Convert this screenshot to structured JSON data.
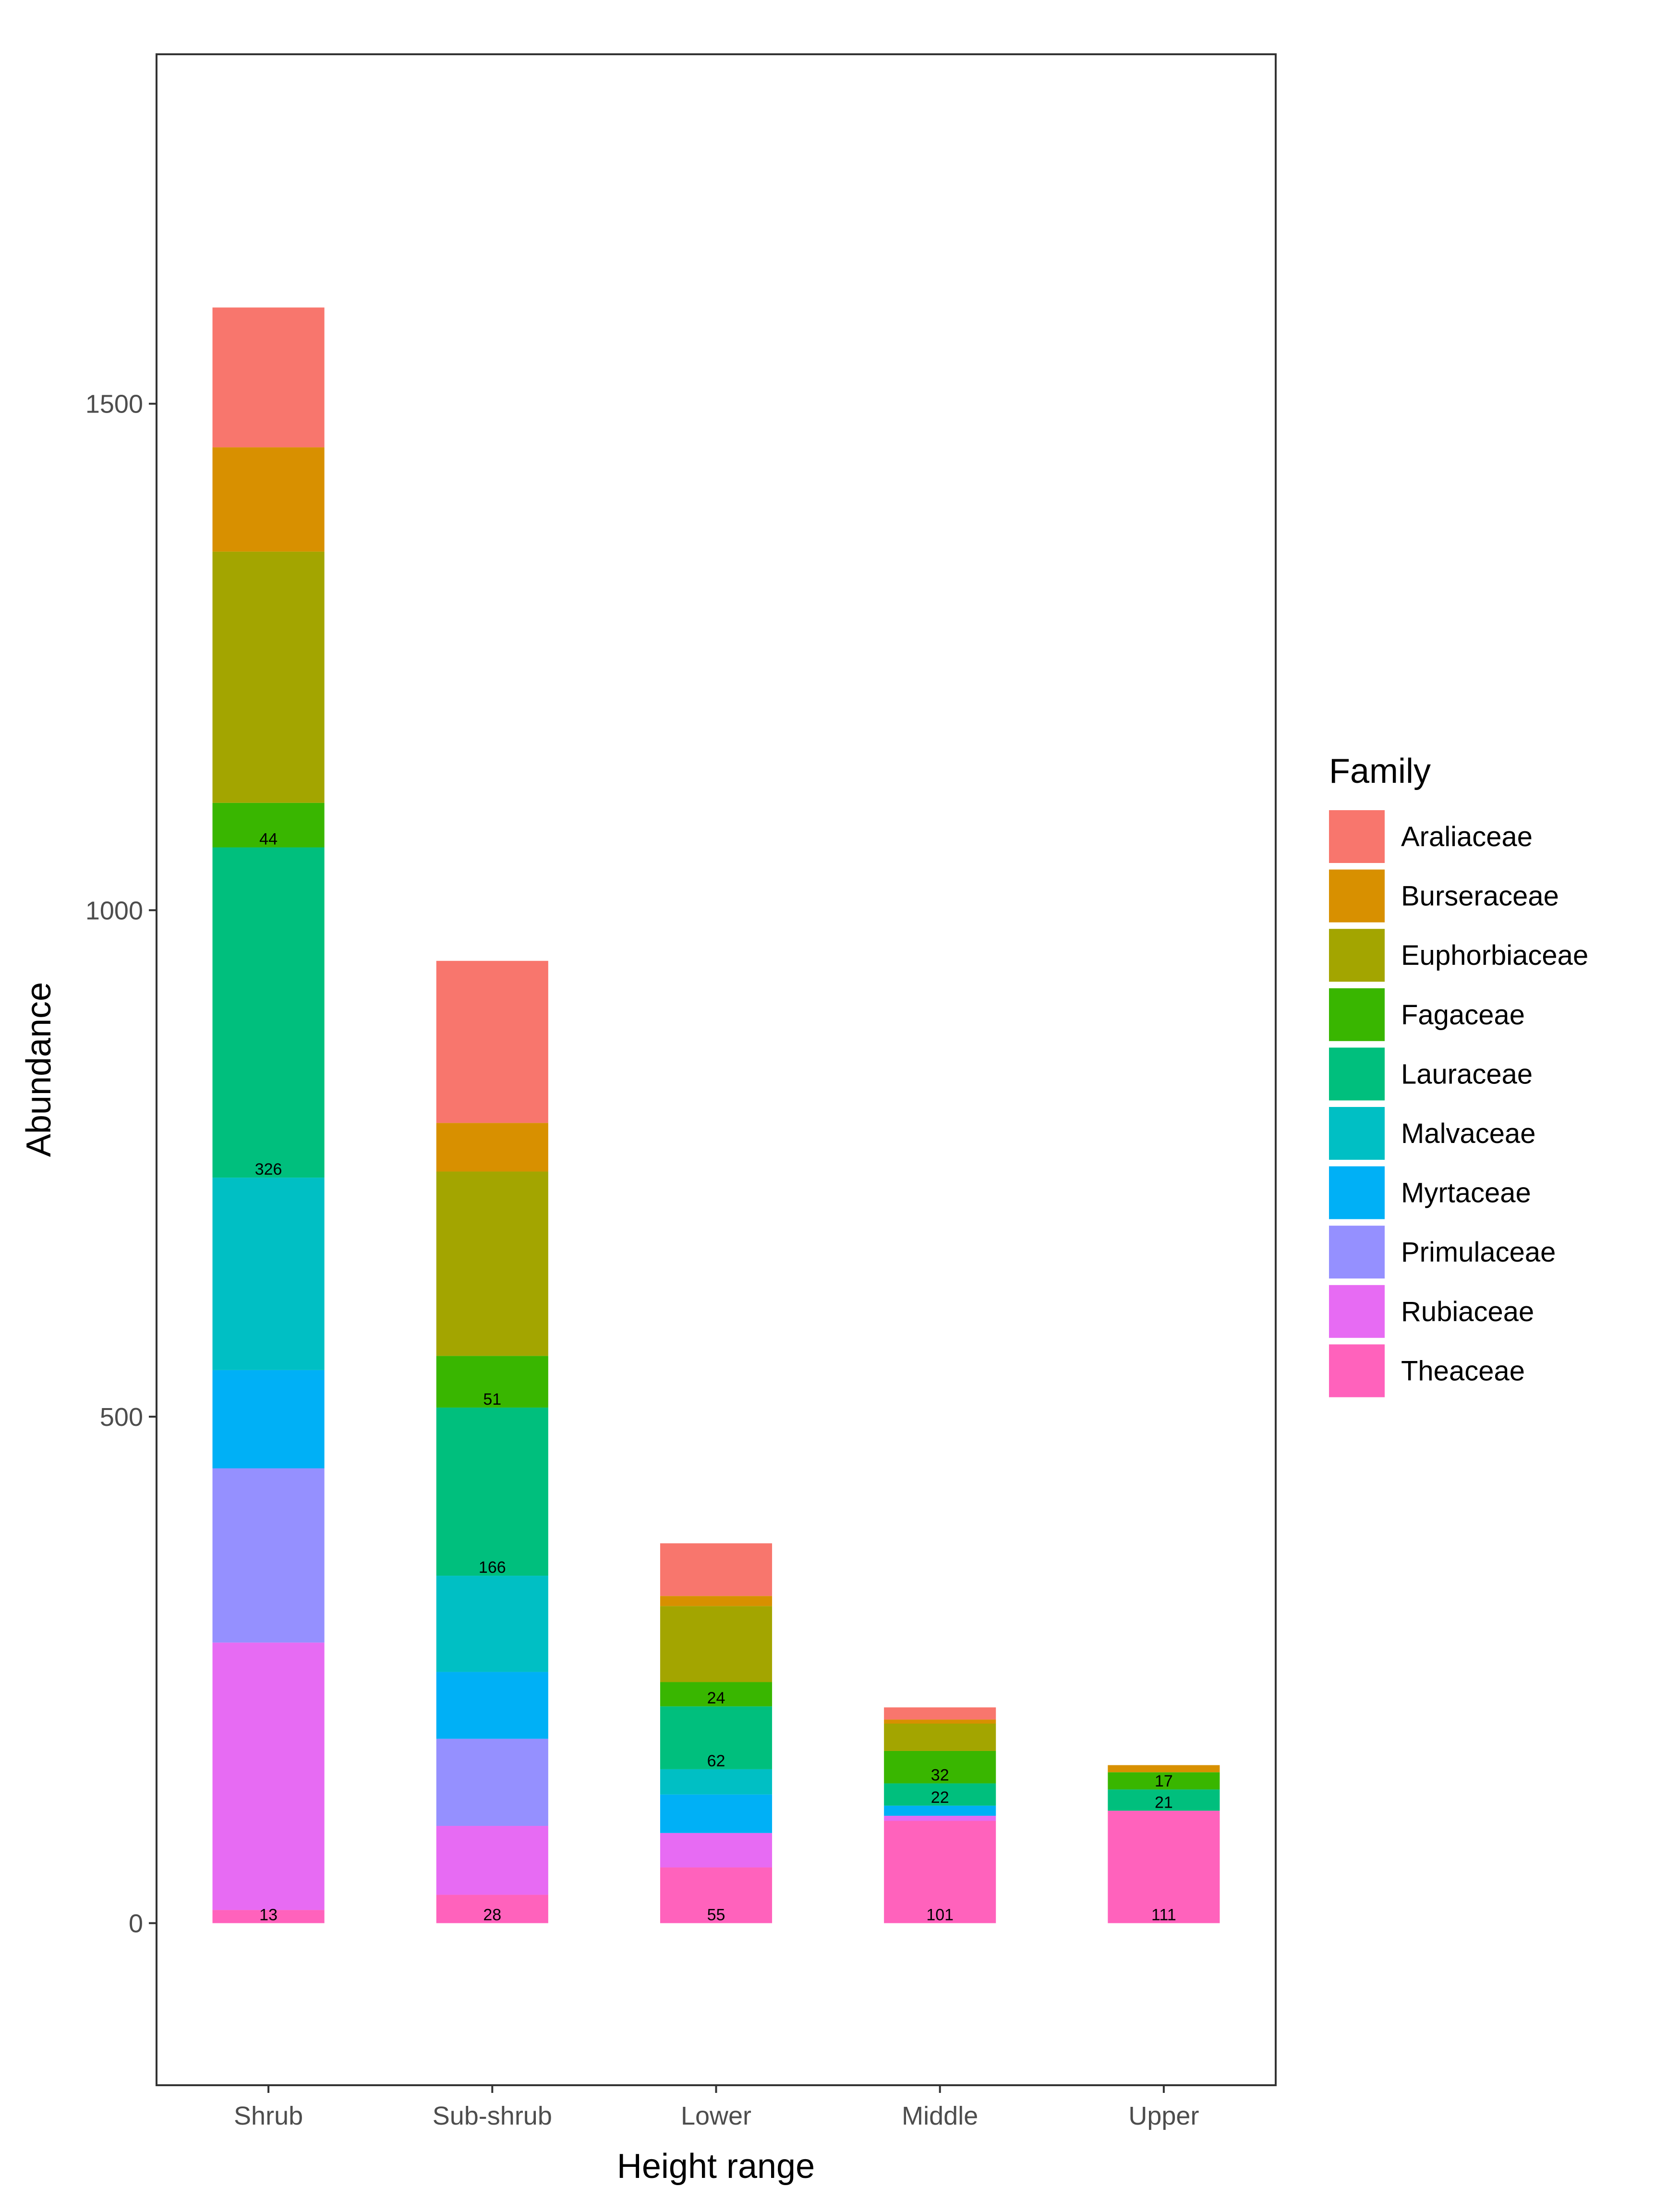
{
  "chart_data": {
    "type": "bar",
    "stacked": true,
    "xlabel": "Height range",
    "ylabel": "Abundance",
    "ylim": [
      -160,
      1845
    ],
    "yticks": [
      0,
      500,
      1000,
      1500
    ],
    "categories": [
      "Shrub",
      "Sub-shrub",
      "Lower",
      "Middle",
      "Upper"
    ],
    "legend": {
      "title": "Family",
      "position": "right"
    },
    "series": [
      {
        "name": "Araliaceae",
        "color": "#F8766D",
        "values": [
          138,
          160,
          52,
          12,
          0
        ]
      },
      {
        "name": "Burseraceae",
        "color": "#D89000",
        "values": [
          103,
          48,
          10,
          4,
          7
        ]
      },
      {
        "name": "Euphorbiaceae",
        "color": "#A3A500",
        "values": [
          248,
          182,
          75,
          27,
          0
        ]
      },
      {
        "name": "Fagaceae",
        "color": "#39B600",
        "values": [
          44,
          51,
          24,
          32,
          17
        ]
      },
      {
        "name": "Lauraceae",
        "color": "#00BF7D",
        "values": [
          326,
          166,
          62,
          22,
          21
        ]
      },
      {
        "name": "Malvaceae",
        "color": "#00BFC4",
        "values": [
          190,
          95,
          25,
          0,
          0
        ]
      },
      {
        "name": "Myrtaceae",
        "color": "#00B0F6",
        "values": [
          97,
          66,
          38,
          10,
          0
        ]
      },
      {
        "name": "Primulaceae",
        "color": "#9590FF",
        "values": [
          172,
          86,
          0,
          0,
          0
        ]
      },
      {
        "name": "Rubiaceae",
        "color": "#E76BF3",
        "values": [
          264,
          68,
          34,
          5,
          0
        ]
      },
      {
        "name": "Theaceae",
        "color": "#FF62BC",
        "values": [
          13,
          28,
          55,
          101,
          111
        ]
      }
    ],
    "labeled_series": [
      "Fagaceae",
      "Lauraceae",
      "Theaceae"
    ]
  }
}
